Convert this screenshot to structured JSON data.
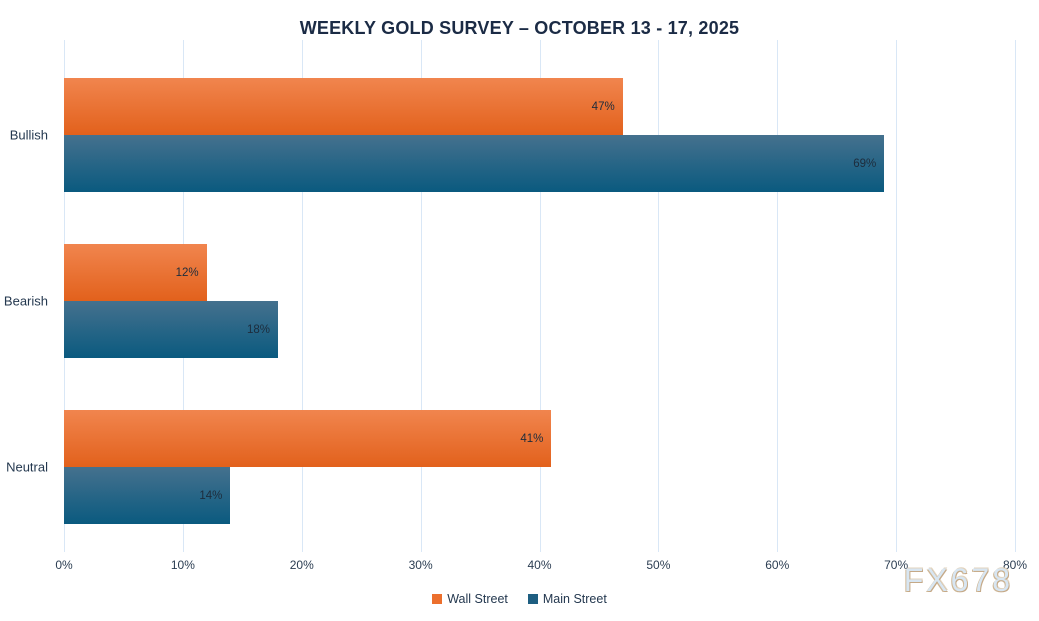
{
  "title": "WEEKLY GOLD SURVEY – OCTOBER 13 - 17, 2025",
  "watermark": "FX678",
  "chart_data": {
    "type": "bar",
    "orientation": "horizontal",
    "title": "WEEKLY GOLD SURVEY – OCTOBER 13 - 17, 2025",
    "categories": [
      "Bullish",
      "Bearish",
      "Neutral"
    ],
    "series": [
      {
        "name": "Wall Street",
        "values": [
          47,
          12,
          41
        ],
        "legend_color": "#EC6F2D",
        "gradient_top": "#F1854E",
        "gradient_bottom": "#E2611C"
      },
      {
        "name": "Main Street",
        "values": [
          69,
          18,
          14
        ],
        "legend_color": "#1E5E81",
        "gradient_top": "#45718E",
        "gradient_bottom": "#0A5A7F"
      }
    ],
    "value_suffix": "%",
    "xlabel": "",
    "ylabel": "",
    "xlim": [
      0,
      80
    ],
    "x_ticks": [
      "0%",
      "10%",
      "20%",
      "30%",
      "40%",
      "50%",
      "60%",
      "70%",
      "80%"
    ],
    "grid": "vertical-only",
    "gridline_color": "#D9E7F6",
    "legend_position": "bottom",
    "data_labels": "inside-end",
    "title_color": "#1B2B45",
    "label_color": "#24384F"
  }
}
